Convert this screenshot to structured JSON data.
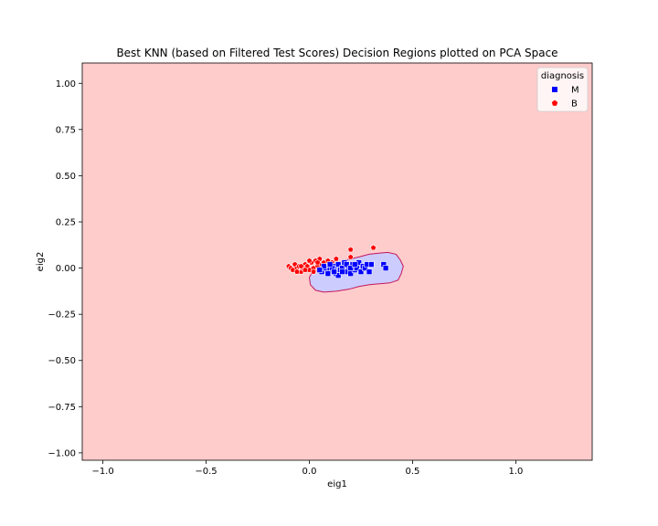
{
  "chart_data": {
    "type": "scatter",
    "title": "Best KNN (based on Filtered Test Scores) Decision Regions plotted on PCA Space",
    "xlabel": "eig1",
    "ylabel": "eig2",
    "xlim": [
      -1.1,
      1.37
    ],
    "ylim": [
      -1.04,
      1.11
    ],
    "xticks": [
      -1.0,
      -0.5,
      0.0,
      0.5,
      1.0
    ],
    "xtick_labels": [
      "−1.0",
      "−0.5",
      "0.0",
      "0.5",
      "1.0"
    ],
    "yticks": [
      1.0,
      0.75,
      0.5,
      0.25,
      0.0,
      -0.25,
      -0.5,
      -0.75,
      -1.0
    ],
    "ytick_labels": [
      "1.00",
      "0.75",
      "0.50",
      "0.25",
      "0.00",
      "−0.25",
      "−0.50",
      "−0.75",
      "−1.00"
    ],
    "grid": false,
    "background_region": {
      "class": "B",
      "color": "#ffcccc"
    },
    "decision_region": {
      "class": "M",
      "fill": "#ccccff",
      "edge": "#c2185b",
      "boundary": [
        [
          0.33,
          0.08
        ],
        [
          0.38,
          0.085
        ],
        [
          0.42,
          0.075
        ],
        [
          0.44,
          0.045
        ],
        [
          0.455,
          0.01
        ],
        [
          0.445,
          -0.03
        ],
        [
          0.43,
          -0.065
        ],
        [
          0.39,
          -0.08
        ],
        [
          0.34,
          -0.085
        ],
        [
          0.29,
          -0.09
        ],
        [
          0.24,
          -0.1
        ],
        [
          0.19,
          -0.115
        ],
        [
          0.13,
          -0.125
        ],
        [
          0.07,
          -0.13
        ],
        [
          0.03,
          -0.12
        ],
        [
          0.005,
          -0.09
        ],
        [
          0.0,
          -0.05
        ],
        [
          0.015,
          -0.02
        ],
        [
          0.06,
          0.0
        ],
        [
          0.12,
          0.02
        ],
        [
          0.18,
          0.045
        ],
        [
          0.24,
          0.06
        ],
        [
          0.29,
          0.075
        ],
        [
          0.33,
          0.08
        ]
      ]
    },
    "legend": {
      "title": "diagnosis",
      "placement": "top-right",
      "entries": [
        "M",
        "B"
      ]
    },
    "series": [
      {
        "name": "M",
        "marker": "square",
        "color": "#0000ff",
        "points": [
          [
            0.06,
            -0.02
          ],
          [
            0.08,
            0.0
          ],
          [
            0.1,
            -0.01
          ],
          [
            0.12,
            0.01
          ],
          [
            0.13,
            -0.03
          ],
          [
            0.14,
            0.02
          ],
          [
            0.15,
            -0.01
          ],
          [
            0.16,
            0.0
          ],
          [
            0.17,
            0.03
          ],
          [
            0.18,
            -0.02
          ],
          [
            0.19,
            0.01
          ],
          [
            0.2,
            -0.03
          ],
          [
            0.21,
            0.02
          ],
          [
            0.22,
            -0.01
          ],
          [
            0.23,
            0.0
          ],
          [
            0.24,
            0.03
          ],
          [
            0.25,
            -0.02
          ],
          [
            0.26,
            0.01
          ],
          [
            0.27,
            0.0
          ],
          [
            0.28,
            0.02
          ],
          [
            0.29,
            -0.02
          ],
          [
            0.3,
            0.02
          ],
          [
            0.36,
            0.02
          ],
          [
            0.37,
            0.0
          ],
          [
            0.09,
            -0.03
          ],
          [
            0.11,
            0.0
          ],
          [
            0.14,
            -0.04
          ],
          [
            0.16,
            -0.02
          ],
          [
            0.18,
            0.02
          ],
          [
            0.2,
            0.0
          ],
          [
            0.22,
            0.02
          ],
          [
            0.12,
            -0.02
          ],
          [
            0.07,
            0.01
          ],
          [
            0.05,
            -0.01
          ],
          [
            0.1,
            0.02
          ]
        ]
      },
      {
        "name": "B",
        "marker": "pentagon",
        "color": "#ff0000",
        "points": [
          [
            -0.1,
            0.01
          ],
          [
            -0.09,
            0.0
          ],
          [
            -0.08,
            -0.01
          ],
          [
            -0.07,
            0.02
          ],
          [
            -0.06,
            0.0
          ],
          [
            -0.05,
            0.01
          ],
          [
            -0.04,
            -0.02
          ],
          [
            -0.03,
            0.0
          ],
          [
            -0.02,
            0.02
          ],
          [
            -0.01,
            0.01
          ],
          [
            0.0,
            -0.01
          ],
          [
            0.01,
            0.03
          ],
          [
            0.02,
            0.0
          ],
          [
            0.03,
            0.04
          ],
          [
            0.04,
            0.01
          ],
          [
            0.05,
            0.05
          ],
          [
            0.06,
            0.02
          ],
          [
            0.07,
            0.03
          ],
          [
            0.09,
            0.04
          ],
          [
            0.11,
            0.03
          ],
          [
            0.13,
            0.05
          ],
          [
            0.2,
            0.1
          ],
          [
            0.2,
            0.06
          ],
          [
            0.31,
            0.11
          ],
          [
            -0.06,
            -0.02
          ],
          [
            -0.04,
            0.01
          ],
          [
            0.02,
            -0.02
          ],
          [
            0.0,
            0.04
          ],
          [
            -0.02,
            -0.01
          ],
          [
            0.04,
            0.03
          ]
        ]
      }
    ]
  }
}
